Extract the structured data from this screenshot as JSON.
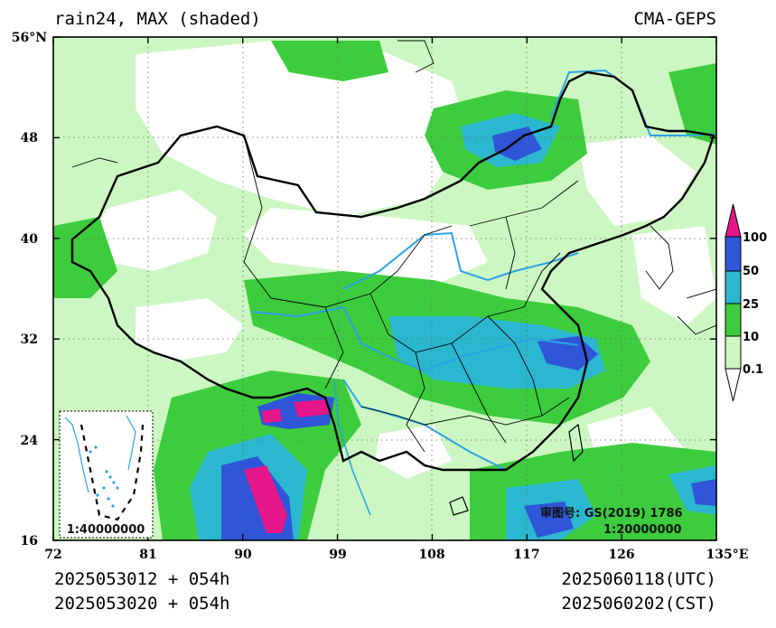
{
  "header": {
    "title_left": "rain24, MAX (shaded)",
    "title_right": "CMA-GEPS"
  },
  "footer": {
    "init_utc": "2025053012 + 054h",
    "init_cst": "2025053020 + 054h",
    "valid_utc": "2025060118(UTC)",
    "valid_cst": "2025060202(CST)"
  },
  "map": {
    "lon_range": [
      72,
      135
    ],
    "lat_range": [
      16,
      56
    ],
    "lon_ticks": [
      "72",
      "81",
      "90",
      "99",
      "108",
      "117",
      "126",
      "135°E"
    ],
    "lat_ticks": [
      "16",
      "24",
      "32",
      "40",
      "48",
      "56°N"
    ],
    "gridlines": "dotted",
    "inset_scale": "1:40000000",
    "review_number": "审图号: GS(2019) 1786",
    "main_scale": "1:20000000"
  },
  "legend": {
    "levels": [
      "0.1",
      "10",
      "25",
      "50",
      "100"
    ],
    "colors": [
      "#ffffff",
      "#ccf7c2",
      "#3dcc3d",
      "#2bb7cf",
      "#2f55d8",
      "#e5178a"
    ]
  },
  "colors": {
    "boundary": "#000000",
    "rivers": "#2aa3e6"
  }
}
